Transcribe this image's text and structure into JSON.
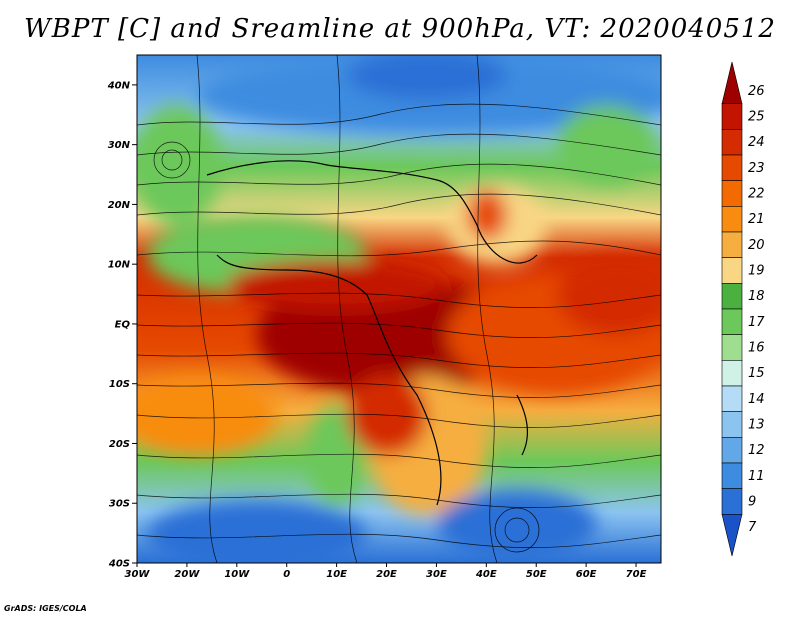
{
  "title": "WBPT [C] and Sreamline at 900hPa, VT: 2020040512",
  "credit": "GrADS: IGES/COLA",
  "map": {
    "lon_range": [
      -30,
      75
    ],
    "lat_range": [
      -40,
      45
    ],
    "lat_ticks": [
      "40N",
      "30N",
      "20N",
      "10N",
      "EQ",
      "10S",
      "20S",
      "30S",
      "40S"
    ],
    "lat_values": [
      40,
      30,
      20,
      10,
      0,
      -10,
      -20,
      -30,
      -40
    ],
    "lon_ticks": [
      "30W",
      "20W",
      "10W",
      "0",
      "10E",
      "20E",
      "30E",
      "40E",
      "50E",
      "60E",
      "70E"
    ],
    "lon_values": [
      -30,
      -20,
      -10,
      0,
      10,
      20,
      30,
      40,
      50,
      60,
      70
    ]
  },
  "colorbar": {
    "labels": [
      "26",
      "25",
      "24",
      "23",
      "22",
      "21",
      "20",
      "19",
      "18",
      "17",
      "16",
      "15",
      "14",
      "13",
      "12",
      "11",
      "9",
      "7"
    ],
    "colors": [
      "#9e0000",
      "#c21400",
      "#d42c00",
      "#e64a00",
      "#f26a00",
      "#f88c10",
      "#f6ae40",
      "#f8d684",
      "#4ab040",
      "#6cc85a",
      "#9ede8e",
      "#d0f2e6",
      "#b4dcf6",
      "#8cc4f0",
      "#62a8e8",
      "#3e8ce0",
      "#2a70d6",
      "#1a52c8"
    ]
  }
}
